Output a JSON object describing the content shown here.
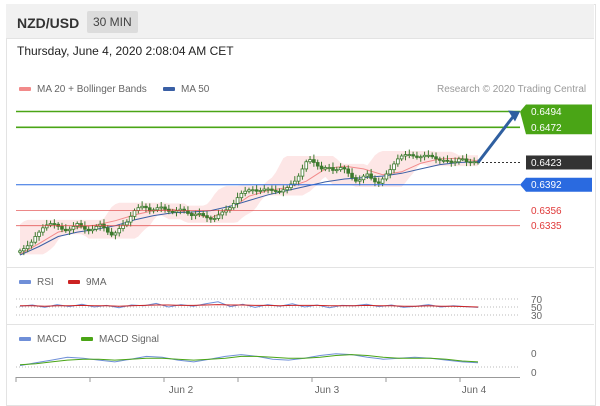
{
  "header": {
    "pair": "NZD/USD",
    "timeframe": "30 MIN"
  },
  "date_text": "Thursday, June 4, 2020 2:08:04 AM CET",
  "legend": {
    "ma20_bb": "MA 20 + Bollinger Bands",
    "ma50": "MA 50",
    "credit": "Research © 2020 Trading Central",
    "rsi": "RSI",
    "ma9": "9MA",
    "macd": "MACD",
    "macd_signal": "MACD Signal"
  },
  "colors": {
    "resistance": "#4aa516",
    "support": "#e03a3a",
    "current": "#333333",
    "pivot": "#2a6ae0",
    "ma20": "#f28a8a",
    "bb_fill": "#fde3e3",
    "ma50": "#3a5fa5",
    "candle": "#3d7a2e",
    "arrow": "#2f5fa0",
    "rsi": "#6f8fd8",
    "ma9": "#cc2222",
    "macd": "#6f8fd8",
    "macd_signal": "#4aa516"
  },
  "chart_data": [
    {
      "type": "candlestick",
      "title": "NZD/USD 30 MIN",
      "x_ticks": [
        "Jun 2",
        "Jun 3",
        "Jun 4"
      ],
      "ylim": [
        0.629,
        0.651
      ],
      "levels": [
        {
          "name": "resistance_2",
          "value": 0.6494,
          "label": "0.6494",
          "kind": "resistance"
        },
        {
          "name": "resistance_1",
          "value": 0.6472,
          "label": "0.6472",
          "kind": "resistance"
        },
        {
          "name": "current",
          "value": 0.6423,
          "label": "0.6423",
          "kind": "current"
        },
        {
          "name": "pivot",
          "value": 0.6392,
          "label": "0.6392",
          "kind": "pivot"
        },
        {
          "name": "support_1",
          "value": 0.6356,
          "label": "0.6356",
          "kind": "support"
        },
        {
          "name": "support_2",
          "value": 0.6335,
          "label": "0.6335",
          "kind": "support"
        }
      ],
      "close_path": [
        0.63,
        0.6303,
        0.6307,
        0.6312,
        0.632,
        0.6326,
        0.6332,
        0.6336,
        0.6338,
        0.6337,
        0.6334,
        0.633,
        0.6328,
        0.633,
        0.6334,
        0.6338,
        0.6334,
        0.633,
        0.6328,
        0.633,
        0.6334,
        0.6337,
        0.6332,
        0.6326,
        0.6322,
        0.6325,
        0.6331,
        0.6336,
        0.634,
        0.6348,
        0.6356,
        0.636,
        0.6362,
        0.636,
        0.6356,
        0.6357,
        0.636,
        0.6361,
        0.6358,
        0.6355,
        0.6354,
        0.6356,
        0.6358,
        0.6356,
        0.6352,
        0.6349,
        0.6351,
        0.6352,
        0.6349,
        0.6346,
        0.6344,
        0.6345,
        0.635,
        0.6354,
        0.6357,
        0.636,
        0.6366,
        0.6374,
        0.638,
        0.6383,
        0.6385,
        0.6385,
        0.6383,
        0.6384,
        0.6386,
        0.6386,
        0.6384,
        0.6383,
        0.6382,
        0.6385,
        0.6388,
        0.6393,
        0.6397,
        0.6404,
        0.6414,
        0.6424,
        0.6427,
        0.6423,
        0.6418,
        0.6414,
        0.6416,
        0.6416,
        0.6412,
        0.6413,
        0.6416,
        0.6414,
        0.6408,
        0.6402,
        0.6397,
        0.6399,
        0.6404,
        0.6407,
        0.6401,
        0.6396,
        0.6394,
        0.64,
        0.6407,
        0.6413,
        0.6421,
        0.6428,
        0.6432,
        0.6434,
        0.6434,
        0.6432,
        0.643,
        0.6431,
        0.6433,
        0.6433,
        0.6431,
        0.6428,
        0.6426,
        0.6426,
        0.6425,
        0.6423,
        0.6424,
        0.6428,
        0.6428,
        0.6424,
        0.6423,
        0.6424,
        0.6423
      ],
      "ma20_path": [
        0.6295,
        0.631,
        0.6326,
        0.6332,
        0.6336,
        0.6342,
        0.635,
        0.6356,
        0.6358,
        0.6352,
        0.6346,
        0.6358,
        0.6376,
        0.6384,
        0.6388,
        0.6397,
        0.6414,
        0.6418,
        0.6414,
        0.6406,
        0.641,
        0.6422,
        0.6428,
        0.6429,
        0.6425
      ],
      "ma50_path": [
        0.6294,
        0.6306,
        0.632,
        0.6326,
        0.633,
        0.6335,
        0.6343,
        0.6349,
        0.6353,
        0.6354,
        0.6356,
        0.6362,
        0.637,
        0.6378,
        0.6384,
        0.639,
        0.6396,
        0.64,
        0.6402,
        0.6404,
        0.6408,
        0.6414,
        0.642,
        0.6423,
        0.6424
      ],
      "forecast": {
        "from": 0.6423,
        "to": 0.6494,
        "direction": "up"
      }
    },
    {
      "type": "line",
      "title": "RSI",
      "y_ticks": [
        "70",
        "50",
        "30"
      ],
      "ylim": [
        25,
        75
      ],
      "series": [
        {
          "name": "RSI",
          "values": [
            52,
            55,
            49,
            56,
            51,
            57,
            50,
            54,
            48,
            55,
            53,
            59,
            50,
            56,
            52,
            58,
            63,
            51,
            57,
            49,
            56,
            52,
            58,
            50,
            55,
            48,
            54,
            53,
            57,
            51,
            55,
            49,
            52,
            56,
            50,
            53,
            51,
            49
          ]
        },
        {
          "name": "9MA",
          "values": [
            53,
            53,
            52,
            53,
            53,
            54,
            53,
            53,
            52,
            53,
            54,
            55,
            55,
            54,
            54,
            55,
            56,
            55,
            55,
            54,
            54,
            53,
            54,
            54,
            54,
            53,
            53,
            53,
            54,
            53,
            53,
            52,
            52,
            53,
            52,
            52,
            51,
            50
          ]
        }
      ]
    },
    {
      "type": "line",
      "title": "MACD",
      "y_ticks": [
        "0",
        "0"
      ],
      "ylim": [
        -0.0012,
        0.0012
      ],
      "series": [
        {
          "name": "MACD",
          "values": [
            -0.0005,
            -0.0002,
            0.0001,
            0.0004,
            0.0003,
            0.0001,
            -0.0001,
            0.0002,
            0.0005,
            0.0004,
            0.0001,
            -0.0001,
            0.0002,
            0.0005,
            0.0007,
            0.0005,
            0.0002,
            0.0001,
            0.0003,
            0.0006,
            0.0008,
            0.0007,
            0.0004,
            0.0002,
            0.0003,
            0.0004,
            0.0003,
            0.0001,
            -0.0001,
            -0.0002
          ]
        },
        {
          "name": "MACD Signal",
          "values": [
            -0.0004,
            -0.0003,
            -0.0001,
            0.0001,
            0.0002,
            0.0002,
            0.0001,
            0.0002,
            0.0003,
            0.0003,
            0.0002,
            0.0001,
            0.0002,
            0.0003,
            0.0005,
            0.0005,
            0.0004,
            0.0003,
            0.0003,
            0.0004,
            0.0006,
            0.0007,
            0.0006,
            0.0004,
            0.0003,
            0.0003,
            0.0003,
            0.0002,
            0.0,
            -0.0001
          ]
        }
      ]
    }
  ]
}
